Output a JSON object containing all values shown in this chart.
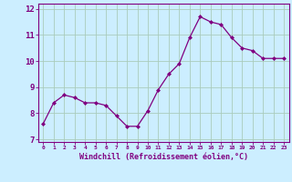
{
  "x": [
    0,
    1,
    2,
    3,
    4,
    5,
    6,
    7,
    8,
    9,
    10,
    11,
    12,
    13,
    14,
    15,
    16,
    17,
    18,
    19,
    20,
    21,
    22,
    23
  ],
  "y": [
    7.6,
    8.4,
    8.7,
    8.6,
    8.4,
    8.4,
    8.3,
    7.9,
    7.5,
    7.5,
    8.1,
    8.9,
    9.5,
    9.9,
    10.9,
    11.7,
    11.5,
    11.4,
    10.9,
    10.5,
    10.4,
    10.1,
    10.1,
    10.1
  ],
  "line_color": "#800080",
  "marker": "D",
  "marker_size": 2.0,
  "bg_color": "#cceeff",
  "grid_color": "#aaccbb",
  "tick_color": "#800080",
  "xlabel": "Windchill (Refroidissement éolien,°C)",
  "ylabel": "",
  "title": "",
  "xlim": [
    -0.5,
    23.5
  ],
  "ylim": [
    6.9,
    12.2
  ],
  "yticks": [
    7,
    8,
    9,
    10,
    11,
    12
  ],
  "xticks": [
    0,
    1,
    2,
    3,
    4,
    5,
    6,
    7,
    8,
    9,
    10,
    11,
    12,
    13,
    14,
    15,
    16,
    17,
    18,
    19,
    20,
    21,
    22,
    23
  ]
}
